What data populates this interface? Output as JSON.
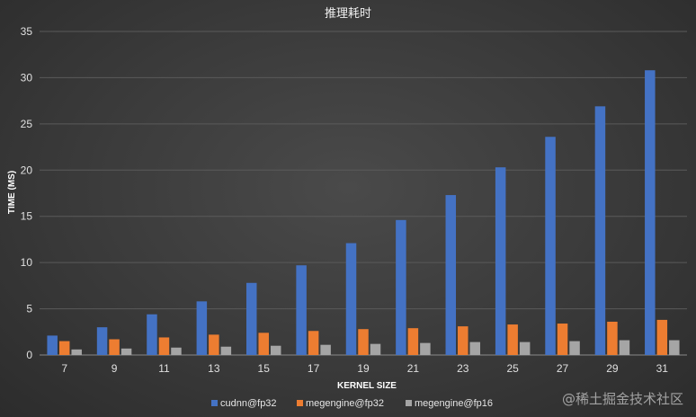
{
  "watermark": "@稀土掘金技术社区",
  "chart_data": {
    "type": "bar",
    "title": "推理耗时",
    "xlabel": "KERNEL SIZE",
    "ylabel": "TIME (MS)",
    "ylim": [
      0,
      35
    ],
    "yticks": [
      0,
      5,
      10,
      15,
      20,
      25,
      30,
      35
    ],
    "grid": true,
    "legend_position": "bottom",
    "categories": [
      "7",
      "9",
      "11",
      "13",
      "15",
      "17",
      "19",
      "21",
      "23",
      "25",
      "27",
      "29",
      "31"
    ],
    "series": [
      {
        "name": "cudnn@fp32",
        "color": "#4472c4",
        "values": [
          2.1,
          3.0,
          4.4,
          5.8,
          7.8,
          9.7,
          12.1,
          14.6,
          17.3,
          20.3,
          23.6,
          26.9,
          30.8
        ]
      },
      {
        "name": "megengine@fp32",
        "color": "#ed7d31",
        "values": [
          1.5,
          1.7,
          1.9,
          2.2,
          2.4,
          2.6,
          2.8,
          2.9,
          3.1,
          3.3,
          3.4,
          3.6,
          3.8
        ]
      },
      {
        "name": "megengine@fp16",
        "color": "#a5a5a5",
        "values": [
          0.6,
          0.7,
          0.8,
          0.9,
          1.0,
          1.1,
          1.2,
          1.3,
          1.4,
          1.4,
          1.5,
          1.6,
          1.6
        ]
      }
    ]
  }
}
